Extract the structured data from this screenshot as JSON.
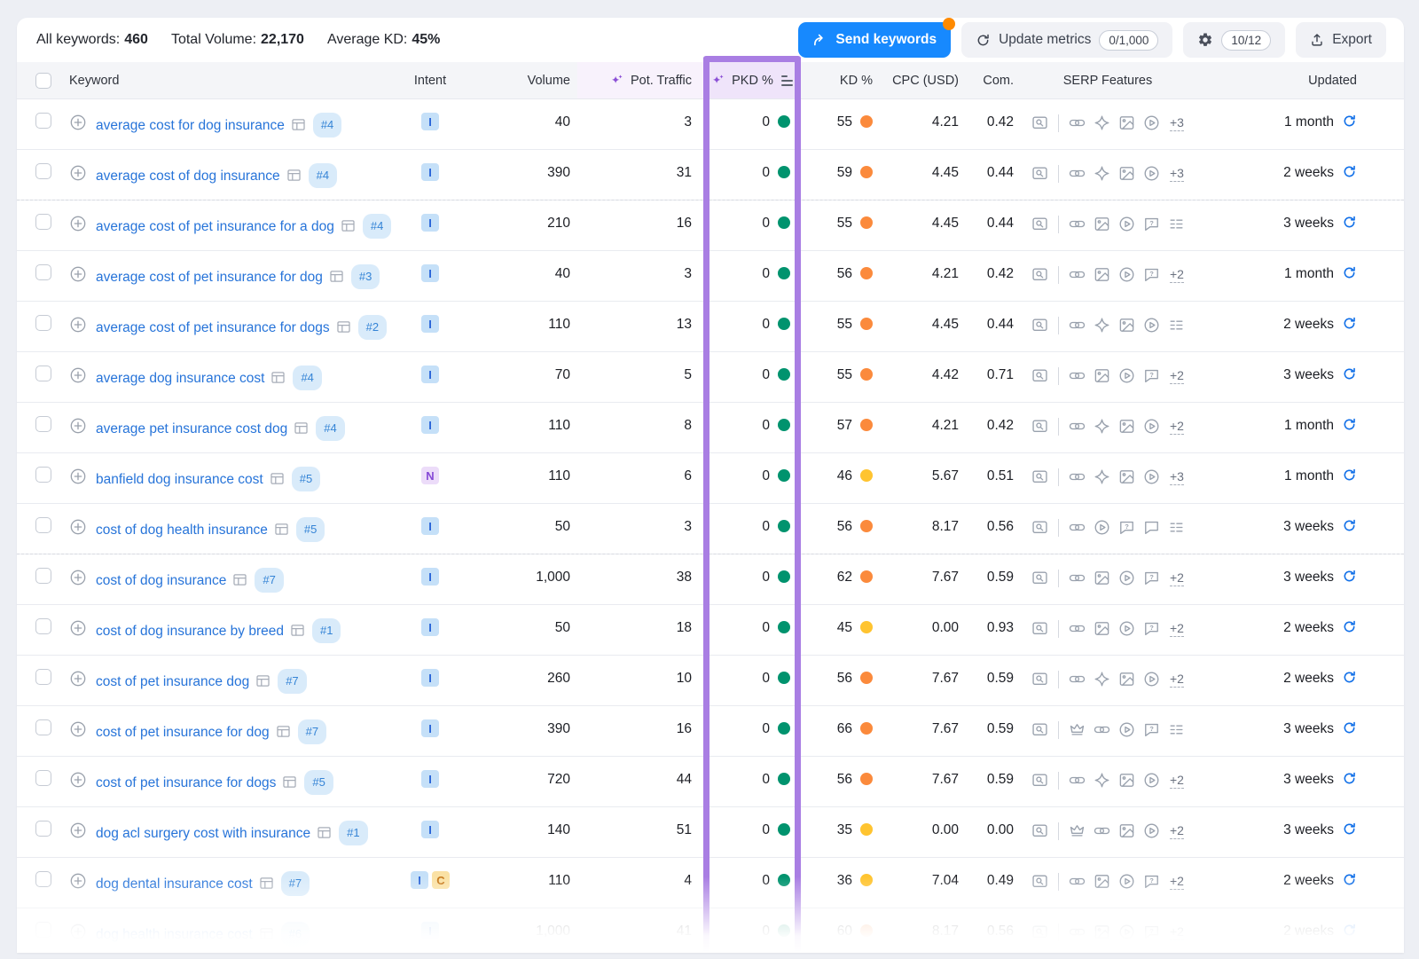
{
  "toolbar": {
    "all_keywords_label": "All keywords:",
    "all_keywords_value": "460",
    "total_volume_label": "Total Volume:",
    "total_volume_value": "22,170",
    "average_kd_label": "Average KD:",
    "average_kd_value": "45%",
    "send_keywords_label": "Send keywords",
    "update_metrics_label": "Update metrics",
    "update_metrics_count": "0/1,000",
    "columns_count": "10/12",
    "export_label": "Export"
  },
  "header": {
    "keyword": "Keyword",
    "intent": "Intent",
    "volume": "Volume",
    "pot_traffic": "Pot. Traffic",
    "pkd": "PKD %",
    "kd": "KD %",
    "cpc": "CPC (USD)",
    "com": "Com.",
    "serp_features": "SERP Features",
    "updated": "Updated"
  },
  "colors": {
    "accent_blue": "#1789fe",
    "notification_orange": "#ff8a00",
    "highlight_purple": "#a97ee3",
    "sparkle_purple": "#8b4fd6",
    "link_blue": "#2774d9",
    "green_dot": "#00936e",
    "orange_dot": "#fb8a3c",
    "yellow_dot": "#ffc430"
  },
  "rows": [
    {
      "keyword": "average cost for dog insurance",
      "rank": "#4",
      "intents": [
        "I"
      ],
      "volume": "40",
      "pot_traffic": "3",
      "pkd": "0",
      "kd": "55",
      "kd_color": "orange",
      "cpc": "4.21",
      "com": "0.42",
      "serp": [
        "link",
        "diamond",
        "image",
        "video"
      ],
      "serp_more": "+3",
      "updated": "1 month",
      "separator": "solid",
      "faded": false
    },
    {
      "keyword": "average cost of dog insurance",
      "rank": "#4",
      "intents": [
        "I"
      ],
      "volume": "390",
      "pot_traffic": "31",
      "pkd": "0",
      "kd": "59",
      "kd_color": "orange",
      "cpc": "4.45",
      "com": "0.44",
      "serp": [
        "link",
        "diamond",
        "image",
        "video"
      ],
      "serp_more": "+3",
      "updated": "2 weeks",
      "separator": "solid",
      "faded": false
    },
    {
      "keyword": "average cost of pet insurance for a dog",
      "rank": "#4",
      "intents": [
        "I"
      ],
      "volume": "210",
      "pot_traffic": "16",
      "pkd": "0",
      "kd": "55",
      "kd_color": "orange",
      "cpc": "4.45",
      "com": "0.44",
      "serp": [
        "link",
        "image",
        "video",
        "question",
        "list"
      ],
      "serp_more": "",
      "updated": "3 weeks",
      "separator": "dashed",
      "faded": false
    },
    {
      "keyword": "average cost of pet insurance for dog",
      "rank": "#3",
      "intents": [
        "I"
      ],
      "volume": "40",
      "pot_traffic": "3",
      "pkd": "0",
      "kd": "56",
      "kd_color": "orange",
      "cpc": "4.21",
      "com": "0.42",
      "serp": [
        "link",
        "image",
        "video",
        "question"
      ],
      "serp_more": "+2",
      "updated": "1 month",
      "separator": "solid",
      "faded": false
    },
    {
      "keyword": "average cost of pet insurance for dogs",
      "rank": "#2",
      "intents": [
        "I"
      ],
      "volume": "110",
      "pot_traffic": "13",
      "pkd": "0",
      "kd": "55",
      "kd_color": "orange",
      "cpc": "4.45",
      "com": "0.44",
      "serp": [
        "link",
        "diamond",
        "image",
        "video",
        "list"
      ],
      "serp_more": "",
      "updated": "2 weeks",
      "separator": "solid",
      "faded": false
    },
    {
      "keyword": "average dog insurance cost",
      "rank": "#4",
      "intents": [
        "I"
      ],
      "volume": "70",
      "pot_traffic": "5",
      "pkd": "0",
      "kd": "55",
      "kd_color": "orange",
      "cpc": "4.42",
      "com": "0.71",
      "serp": [
        "link",
        "image",
        "video",
        "question"
      ],
      "serp_more": "+2",
      "updated": "3 weeks",
      "separator": "solid",
      "faded": false
    },
    {
      "keyword": "average pet insurance cost dog",
      "rank": "#4",
      "intents": [
        "I"
      ],
      "volume": "110",
      "pot_traffic": "8",
      "pkd": "0",
      "kd": "57",
      "kd_color": "orange",
      "cpc": "4.21",
      "com": "0.42",
      "serp": [
        "link",
        "diamond",
        "image",
        "video"
      ],
      "serp_more": "+2",
      "updated": "1 month",
      "separator": "solid",
      "faded": false
    },
    {
      "keyword": "banfield dog insurance cost",
      "rank": "#5",
      "intents": [
        "N"
      ],
      "volume": "110",
      "pot_traffic": "6",
      "pkd": "0",
      "kd": "46",
      "kd_color": "yellow",
      "cpc": "5.67",
      "com": "0.51",
      "serp": [
        "link",
        "diamond",
        "image",
        "video"
      ],
      "serp_more": "+3",
      "updated": "1 month",
      "separator": "solid",
      "faded": false
    },
    {
      "keyword": "cost of dog health insurance",
      "rank": "#5",
      "intents": [
        "I"
      ],
      "volume": "50",
      "pot_traffic": "3",
      "pkd": "0",
      "kd": "56",
      "kd_color": "orange",
      "cpc": "8.17",
      "com": "0.56",
      "serp": [
        "link",
        "video",
        "question",
        "chat",
        "list"
      ],
      "serp_more": "",
      "updated": "3 weeks",
      "separator": "solid",
      "faded": false
    },
    {
      "keyword": "cost of dog insurance",
      "rank": "#7",
      "intents": [
        "I"
      ],
      "volume": "1,000",
      "pot_traffic": "38",
      "pkd": "0",
      "kd": "62",
      "kd_color": "orange",
      "cpc": "7.67",
      "com": "0.59",
      "serp": [
        "link",
        "image",
        "video",
        "question"
      ],
      "serp_more": "+2",
      "updated": "3 weeks",
      "separator": "dashed",
      "faded": false
    },
    {
      "keyword": "cost of dog insurance by breed",
      "rank": "#1",
      "intents": [
        "I"
      ],
      "volume": "50",
      "pot_traffic": "18",
      "pkd": "0",
      "kd": "45",
      "kd_color": "yellow",
      "cpc": "0.00",
      "com": "0.93",
      "serp": [
        "link",
        "image",
        "video",
        "question"
      ],
      "serp_more": "+2",
      "updated": "2 weeks",
      "separator": "solid",
      "faded": false
    },
    {
      "keyword": "cost of pet insurance dog",
      "rank": "#7",
      "intents": [
        "I"
      ],
      "volume": "260",
      "pot_traffic": "10",
      "pkd": "0",
      "kd": "56",
      "kd_color": "orange",
      "cpc": "7.67",
      "com": "0.59",
      "serp": [
        "link",
        "diamond",
        "image",
        "video"
      ],
      "serp_more": "+2",
      "updated": "2 weeks",
      "separator": "solid",
      "faded": false
    },
    {
      "keyword": "cost of pet insurance for dog",
      "rank": "#7",
      "intents": [
        "I"
      ],
      "volume": "390",
      "pot_traffic": "16",
      "pkd": "0",
      "kd": "66",
      "kd_color": "orange",
      "cpc": "7.67",
      "com": "0.59",
      "serp": [
        "crown",
        "link",
        "video",
        "question",
        "list"
      ],
      "serp_more": "",
      "updated": "3 weeks",
      "separator": "solid",
      "faded": false
    },
    {
      "keyword": "cost of pet insurance for dogs",
      "rank": "#5",
      "intents": [
        "I"
      ],
      "volume": "720",
      "pot_traffic": "44",
      "pkd": "0",
      "kd": "56",
      "kd_color": "orange",
      "cpc": "7.67",
      "com": "0.59",
      "serp": [
        "link",
        "diamond",
        "image",
        "video"
      ],
      "serp_more": "+2",
      "updated": "3 weeks",
      "separator": "solid",
      "faded": false
    },
    {
      "keyword": "dog acl surgery cost with insurance",
      "rank": "#1",
      "intents": [
        "I"
      ],
      "volume": "140",
      "pot_traffic": "51",
      "pkd": "0",
      "kd": "35",
      "kd_color": "yellow",
      "cpc": "0.00",
      "com": "0.00",
      "serp": [
        "crown",
        "link",
        "image",
        "video"
      ],
      "serp_more": "+2",
      "updated": "3 weeks",
      "separator": "solid",
      "faded": false
    },
    {
      "keyword": "dog dental insurance cost",
      "rank": "#7",
      "intents": [
        "I",
        "C"
      ],
      "volume": "110",
      "pot_traffic": "4",
      "pkd": "0",
      "kd": "36",
      "kd_color": "yellow",
      "cpc": "7.04",
      "com": "0.49",
      "serp": [
        "link",
        "image",
        "video",
        "question"
      ],
      "serp_more": "+2",
      "updated": "2 weeks",
      "separator": "solid",
      "faded": false
    },
    {
      "keyword": "dog health insurance cost",
      "rank": "#6",
      "intents": [
        "I"
      ],
      "volume": "1,000",
      "pot_traffic": "41",
      "pkd": "0",
      "kd": "60",
      "kd_color": "orange",
      "cpc": "8.17",
      "com": "0.56",
      "serp": [
        "link",
        "image",
        "video",
        "question"
      ],
      "serp_more": "+2",
      "updated": "2 weeks",
      "separator": "solid",
      "faded": true
    }
  ]
}
